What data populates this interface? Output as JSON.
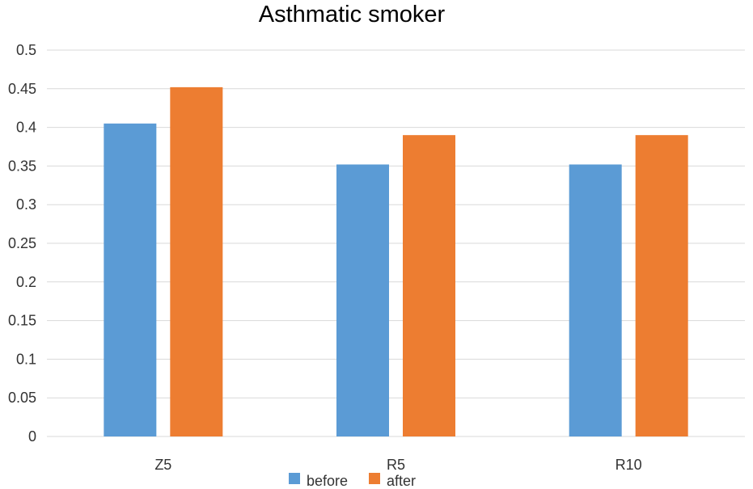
{
  "chart_data": {
    "type": "bar",
    "title": "Asthmatic smoker",
    "categories": [
      "Z5",
      "R5",
      "R10"
    ],
    "series": [
      {
        "name": "before",
        "values": [
          0.405,
          0.352,
          0.352
        ],
        "color": "#5b9bd5"
      },
      {
        "name": "after",
        "values": [
          0.452,
          0.39,
          0.39
        ],
        "color": "#ed7d31"
      }
    ],
    "yticks": [
      "0",
      "0.05",
      "0.1",
      "0.15",
      "0.2",
      "0.25",
      "0.3",
      "0.35",
      "0.4",
      "0.45",
      "0.5"
    ],
    "ylim": [
      0,
      0.5
    ],
    "grid": true,
    "legend_position": "bottom"
  }
}
